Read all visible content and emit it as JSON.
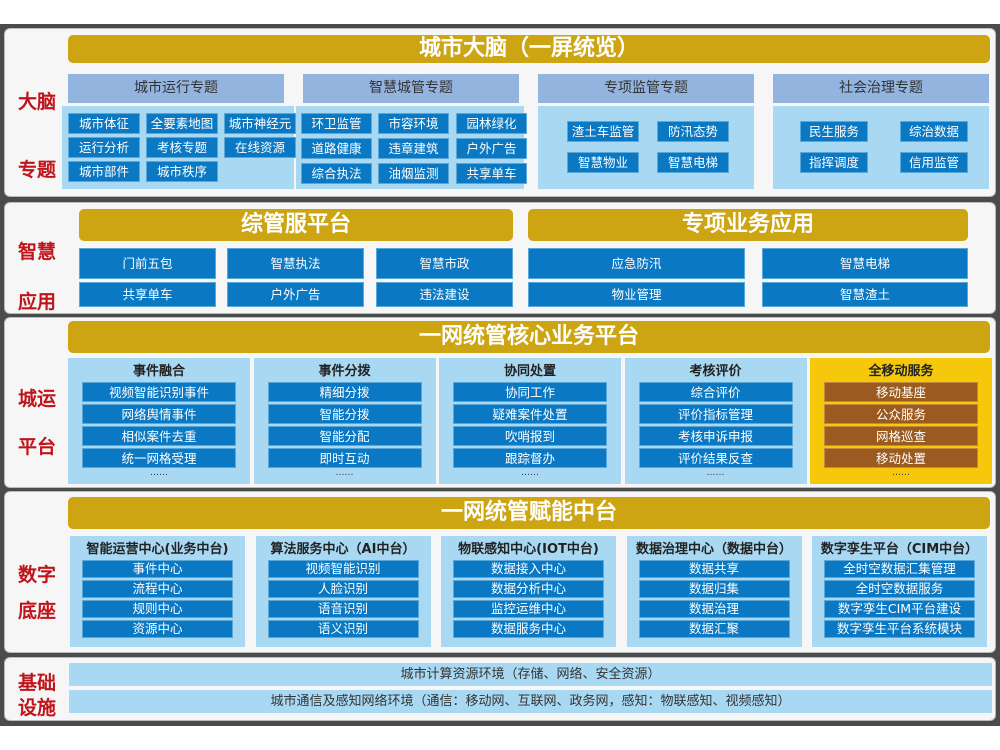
{
  "brain": {
    "side": [
      "大脑",
      "专题"
    ],
    "title": "城市大脑（一屏统览）",
    "groups": [
      {
        "header": "城市运行专题",
        "items": [
          "城市体征",
          "全要素地图",
          "城市神经元",
          "运行分析",
          "考核专题",
          "在线资源",
          "城市部件",
          "城市秩序"
        ]
      },
      {
        "header": "智慧城管专题",
        "items": [
          "环卫监管",
          "市容环境",
          "园林绿化",
          "道路健康",
          "违章建筑",
          "户外广告",
          "综合执法",
          "油烟监测",
          "共享单车"
        ]
      },
      {
        "header": "专项监管专题",
        "items": [
          "渣土车监管",
          "防汛态势",
          "智慧物业",
          "智慧电梯"
        ]
      },
      {
        "header": "社会治理专题",
        "items": [
          "民生服务",
          "综治数据",
          "指挥调度",
          "信用监管"
        ]
      }
    ]
  },
  "apps": {
    "side": [
      "智慧",
      "应用"
    ],
    "left": {
      "title": "综管服平台",
      "items": [
        "门前五包",
        "智慧执法",
        "智慧市政",
        "共享单车",
        "户外广告",
        "违法建设"
      ]
    },
    "right": {
      "title": "专项业务应用",
      "items": [
        "应急防汛",
        "智慧电梯",
        "物业管理",
        "智慧渣土"
      ]
    }
  },
  "platform": {
    "side": [
      "城运",
      "平台"
    ],
    "title": "一网统管核心业务平台",
    "columns": [
      {
        "title": "事件融合",
        "items": [
          "视频智能识别事件",
          "网络舆情事件",
          "相似案件去重",
          "统一网格受理"
        ],
        "more": "……"
      },
      {
        "title": "事件分拨",
        "items": [
          "精细分拨",
          "智能分拨",
          "智能分配",
          "即时互动"
        ],
        "more": "……"
      },
      {
        "title": "协同处置",
        "items": [
          "协同工作",
          "疑难案件处置",
          "吹哨报到",
          "跟踪督办"
        ],
        "more": "……"
      },
      {
        "title": "考核评价",
        "items": [
          "综合评价",
          "评价指标管理",
          "考核申诉申报",
          "评价结果反查"
        ],
        "more": "……"
      },
      {
        "title": "全移动服务",
        "items": [
          "移动基座",
          "公众服务",
          "网格巡查",
          "移动处置"
        ],
        "more": "……"
      }
    ]
  },
  "base": {
    "side": [
      "数字",
      "底座"
    ],
    "title": "一网统管赋能中台",
    "columns": [
      {
        "title": "智能运营中心(业务中台)",
        "items": [
          "事件中心",
          "流程中心",
          "规则中心",
          "资源中心"
        ]
      },
      {
        "title": "算法服务中心（AI中台）",
        "items": [
          "视频智能识别",
          "人脸识别",
          "语音识别",
          "语义识别"
        ]
      },
      {
        "title": "物联感知中心(IOT中台)",
        "items": [
          "数据接入中心",
          "数据分析中心",
          "监控运维中心",
          "数据服务中心"
        ]
      },
      {
        "title": "数据治理中心（数据中台）",
        "items": [
          "数据共享",
          "数据归集",
          "数据治理",
          "数据汇聚"
        ]
      },
      {
        "title": "数字孪生平台（CIM中台）",
        "items": [
          "全时空数据汇集管理",
          "全时空数据服务",
          "数字孪生CIM平台建设",
          "数字孪生平台系统模块"
        ]
      }
    ]
  },
  "infra": {
    "side": [
      "基础",
      "设施"
    ],
    "rows": [
      "城市计算资源环境（存储、网络、安全资源）",
      "城市通信及感知网络环境（通信：移动网、互联网、政务网，感知：物联感知、视频感知）"
    ]
  },
  "colors": {
    "gold": "#cda412",
    "item_blue": "#0a78c3",
    "light_blue": "#a9d8f3",
    "header_blue": "#93b4de",
    "side_red": "#c0141b",
    "mobile_yellow": "#f6c80c",
    "mobile_brown": "#9b5b20"
  }
}
